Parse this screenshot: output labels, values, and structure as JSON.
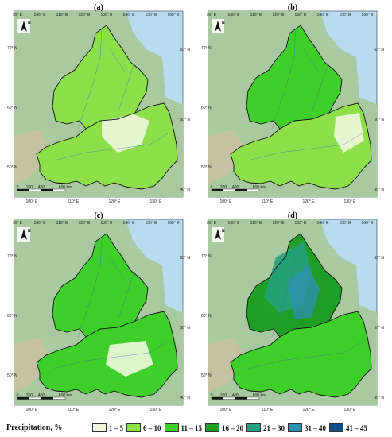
{
  "panels": [
    {
      "label": "(a)",
      "top_ticks": [
        "90° E",
        "100° E",
        "110° E",
        "120° E",
        "130° E",
        "140° E",
        "150° E",
        "160° E"
      ],
      "bottom_ticks": [
        "100° E",
        "110° E",
        "120° E",
        "130° E"
      ],
      "left_ticks": [
        "70° N",
        "60° N",
        "50° N"
      ],
      "right_ticks": [
        "60° N",
        "50° N",
        "40° N"
      ],
      "scale": [
        "0",
        "200",
        "400",
        "800 km"
      ]
    },
    {
      "label": "(b)",
      "top_ticks": [
        "90° E",
        "100° E",
        "110° E",
        "120° E",
        "130° E",
        "140° E",
        "150° E",
        "160° E"
      ],
      "bottom_ticks": [
        "100° E",
        "110° E",
        "120° E",
        "130° E"
      ],
      "left_ticks": [
        "70° N",
        "60° N",
        "50° N"
      ],
      "right_ticks": [
        "60° N",
        "50° N",
        "40° N"
      ],
      "scale": [
        "0",
        "200",
        "400",
        "800 km"
      ]
    },
    {
      "label": "(c)",
      "top_ticks": [
        "90° E",
        "100° E",
        "110° E",
        "120° E",
        "130° E",
        "140° E",
        "150° E",
        "160° E"
      ],
      "bottom_ticks": [
        "100° E",
        "110° E",
        "120° E",
        "130° E"
      ],
      "left_ticks": [
        "70° N",
        "60° N",
        "50° N"
      ],
      "right_ticks": [
        "60° N",
        "50° N",
        "40° N"
      ],
      "scale": [
        "0",
        "200",
        "400",
        "800 km"
      ]
    },
    {
      "label": "(d)",
      "top_ticks": [
        "90° E",
        "100° E",
        "110° E",
        "120° E",
        "130° E",
        "140° E",
        "150° E",
        "160° E"
      ],
      "bottom_ticks": [
        "100° E",
        "110° E",
        "120° E",
        "130° E"
      ],
      "left_ticks": [
        "70° N",
        "60° N",
        "50° N"
      ],
      "right_ticks": [
        "60° N",
        "50° N",
        "40° N"
      ],
      "scale": [
        "0",
        "200",
        "400",
        "800 km"
      ]
    }
  ],
  "north_arrow": "N",
  "legend": {
    "title": "Precipitation, %",
    "items": [
      {
        "label": "1 – 5",
        "color": "#eef7df"
      },
      {
        "label": "6 – 10",
        "color": "#8ee04a"
      },
      {
        "label": "11 – 15",
        "color": "#3ecf2a"
      },
      {
        "label": "16 – 20",
        "color": "#1e9e24"
      },
      {
        "label": "21 – 30",
        "color": "#23a07c"
      },
      {
        "label": "31 – 40",
        "color": "#2f8fb5"
      },
      {
        "label": "41 – 45",
        "color": "#0f4f8c"
      }
    ]
  },
  "colors": {
    "sea": "#b7dcef",
    "land": "#a9c9a0",
    "highland": "#c9c0a3",
    "boundary": "#111111"
  }
}
